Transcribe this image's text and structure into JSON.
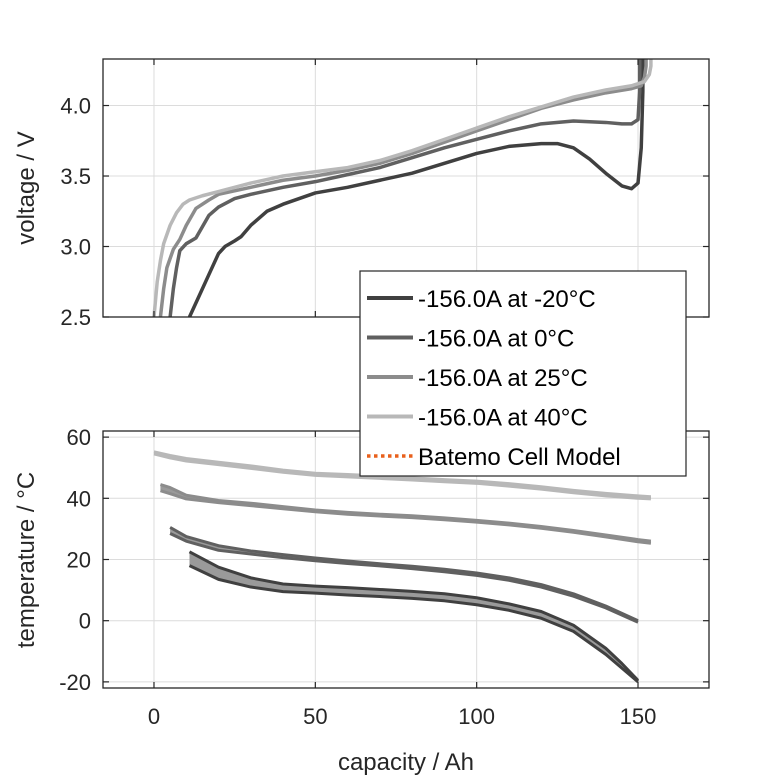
{
  "chart_data": [
    {
      "type": "line",
      "id": "voltage",
      "title": "",
      "xlabel": "",
      "ylabel": "voltage / V",
      "xlim": [
        -15.8,
        172
      ],
      "ylim": [
        2.5,
        4.33
      ],
      "xticks": [
        0,
        50,
        100,
        150
      ],
      "xtick_labels": [
        "",
        "",
        "",
        ""
      ],
      "yticks": [
        2.5,
        3.0,
        3.5,
        4.0
      ],
      "ytick_labels": [
        "2.5",
        "3.0",
        "3.5",
        "4.0"
      ],
      "grid": true,
      "series": [
        {
          "name": "-156.0A at -20°C",
          "color": "#404040",
          "x": [
            11,
            14,
            17,
            20,
            22,
            25,
            27,
            30,
            35,
            40,
            50,
            60,
            70,
            80,
            90,
            100,
            110,
            120,
            125,
            130,
            135,
            140,
            145,
            148,
            150,
            151,
            151.5,
            151.5
          ],
          "y": [
            2.5,
            2.65,
            2.8,
            2.95,
            3.0,
            3.04,
            3.07,
            3.15,
            3.25,
            3.3,
            3.38,
            3.42,
            3.47,
            3.52,
            3.59,
            3.66,
            3.71,
            3.73,
            3.73,
            3.7,
            3.62,
            3.52,
            3.43,
            3.41,
            3.45,
            3.7,
            4.1,
            4.33
          ]
        },
        {
          "name": "-156.0A at 0°C",
          "color": "#606060",
          "x": [
            5,
            6,
            7,
            8,
            10,
            13,
            15,
            17,
            20,
            25,
            30,
            40,
            50,
            60,
            70,
            80,
            90,
            100,
            110,
            120,
            130,
            140,
            145,
            148,
            150,
            150.5,
            150.5
          ],
          "y": [
            2.5,
            2.7,
            2.85,
            2.97,
            3.02,
            3.06,
            3.14,
            3.22,
            3.28,
            3.34,
            3.37,
            3.42,
            3.46,
            3.51,
            3.56,
            3.63,
            3.7,
            3.76,
            3.82,
            3.87,
            3.89,
            3.88,
            3.87,
            3.87,
            3.9,
            4.1,
            4.33
          ]
        },
        {
          "name": "-156.0A at 25°C",
          "color": "#8c8c8c",
          "x": [
            2,
            3,
            4,
            6,
            8,
            10,
            13,
            17,
            20,
            30,
            40,
            50,
            60,
            70,
            80,
            90,
            100,
            110,
            120,
            130,
            140,
            148,
            151,
            152,
            152.5,
            152.5
          ],
          "y": [
            2.5,
            2.7,
            2.85,
            2.98,
            3.05,
            3.15,
            3.27,
            3.33,
            3.37,
            3.42,
            3.47,
            3.5,
            3.54,
            3.59,
            3.66,
            3.74,
            3.82,
            3.9,
            3.98,
            4.04,
            4.09,
            4.12,
            4.14,
            4.2,
            4.28,
            4.33
          ]
        },
        {
          "name": "-156.0A at 40°C",
          "color": "#b8b8b8",
          "x": [
            0,
            1,
            2,
            3,
            5,
            7,
            9,
            11,
            15,
            20,
            30,
            40,
            50,
            60,
            70,
            80,
            90,
            100,
            110,
            120,
            130,
            140,
            148,
            152,
            153.5,
            154,
            154
          ],
          "y": [
            2.5,
            2.75,
            2.9,
            3.02,
            3.15,
            3.24,
            3.3,
            3.33,
            3.36,
            3.39,
            3.45,
            3.5,
            3.53,
            3.56,
            3.61,
            3.68,
            3.76,
            3.84,
            3.92,
            3.99,
            4.06,
            4.11,
            4.14,
            4.17,
            4.22,
            4.28,
            4.33
          ]
        }
      ]
    },
    {
      "type": "line",
      "id": "temperature",
      "title": "",
      "xlabel": "capacity / Ah",
      "ylabel": "temperature / °C",
      "xlim": [
        -15.8,
        172
      ],
      "ylim": [
        -22,
        62
      ],
      "xticks": [
        0,
        50,
        100,
        150
      ],
      "xtick_labels": [
        "0",
        "50",
        "100",
        "150"
      ],
      "yticks": [
        -20,
        0,
        20,
        40,
        60
      ],
      "ytick_labels": [
        "-20",
        "0",
        "20",
        "40",
        "60"
      ],
      "grid": true,
      "series": [
        {
          "name": "-156.0A at -20°C",
          "color": "#404040",
          "band": true,
          "x": [
            11,
            20,
            30,
            40,
            50,
            60,
            70,
            80,
            90,
            100,
            110,
            120,
            130,
            140,
            145,
            150
          ],
          "y_upper": [
            22.5,
            17.5,
            14,
            12,
            11.3,
            10.8,
            10.2,
            9.6,
            8.8,
            7.5,
            5.5,
            3,
            -1.5,
            -9,
            -14,
            -19.5
          ],
          "y_lower": [
            18,
            13.5,
            11,
            9.5,
            9,
            8.4,
            7.9,
            7.3,
            6.5,
            5.2,
            3.4,
            0.8,
            -3.5,
            -11,
            -15.5,
            -20
          ]
        },
        {
          "name": "-156.0A at 0°C",
          "color": "#606060",
          "band": true,
          "x": [
            5,
            10,
            20,
            30,
            40,
            50,
            60,
            70,
            80,
            90,
            100,
            110,
            120,
            130,
            140,
            150
          ],
          "y_upper": [
            30.5,
            27.5,
            24.5,
            22.8,
            21.6,
            20.5,
            19.5,
            18.6,
            17.8,
            16.8,
            15.6,
            14,
            11.8,
            8.8,
            4.8,
            0
          ],
          "y_lower": [
            28.5,
            26,
            23,
            21.8,
            20.6,
            19.6,
            18.7,
            17.9,
            17,
            16,
            14.8,
            13.2,
            11,
            8,
            4.2,
            -0.5
          ]
        },
        {
          "name": "-156.0A at 25°C",
          "color": "#8c8c8c",
          "band": true,
          "x": [
            2,
            5,
            10,
            20,
            30,
            40,
            50,
            60,
            70,
            80,
            90,
            100,
            110,
            120,
            130,
            140,
            150,
            154
          ],
          "y_upper": [
            44.5,
            43.5,
            41,
            39.3,
            38.4,
            37.3,
            36.2,
            35.4,
            34.8,
            34.3,
            33.6,
            32.8,
            31.9,
            30.8,
            29.5,
            28,
            26.5,
            26
          ],
          "y_lower": [
            42.5,
            41.5,
            39.8,
            38.6,
            37.6,
            36.6,
            35.6,
            34.8,
            34.2,
            33.7,
            33,
            32.2,
            31.3,
            30.2,
            28.9,
            27.4,
            25.8,
            25.3
          ]
        },
        {
          "name": "-156.0A at 40°C",
          "color": "#b8b8b8",
          "band": true,
          "x": [
            0,
            5,
            10,
            20,
            30,
            40,
            50,
            60,
            70,
            80,
            90,
            100,
            110,
            120,
            130,
            140,
            150,
            154
          ],
          "y_upper": [
            55.2,
            54,
            53,
            51.8,
            50.6,
            49.2,
            48.2,
            47.8,
            47.3,
            46.7,
            46.1,
            45.6,
            44.8,
            43.8,
            42.6,
            41.6,
            40.8,
            40.5
          ],
          "y_lower": [
            54.5,
            53.2,
            52.2,
            51,
            49.8,
            48.5,
            47.5,
            47,
            46.5,
            46,
            45.4,
            44.9,
            44,
            43,
            41.8,
            40.8,
            40,
            39.8
          ]
        }
      ]
    }
  ],
  "legend": {
    "placement": "center-right",
    "entries": [
      {
        "label": "-156.0A at -20°C",
        "color": "#404040",
        "style": "solid"
      },
      {
        "label": "-156.0A at 0°C",
        "color": "#606060",
        "style": "solid"
      },
      {
        "label": "-156.0A at 25°C",
        "color": "#8c8c8c",
        "style": "solid"
      },
      {
        "label": "-156.0A at 40°C",
        "color": "#b8b8b8",
        "style": "solid"
      },
      {
        "label": "Batemo Cell Model",
        "color": "#e8601c",
        "style": "dotted"
      }
    ]
  },
  "labels": {
    "top_ylabel": "voltage / V",
    "bottom_ylabel": "temperature / °C",
    "bottom_xlabel": "capacity / Ah"
  }
}
